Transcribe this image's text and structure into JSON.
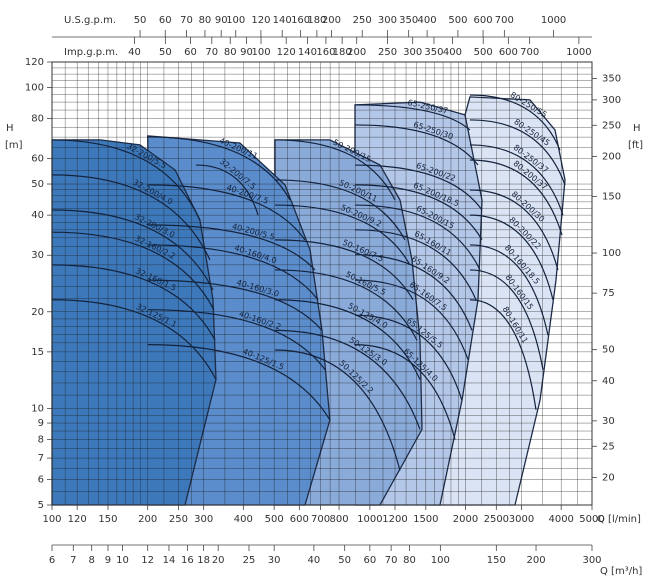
{
  "chart_data": {
    "type": "pump-selection",
    "xscale": "log",
    "yscale": "log",
    "grid": true,
    "xlabel": "Q [l/min]",
    "ylabel": "H",
    "yunit": "[m]",
    "y2label": "H",
    "y2unit": "[ft]",
    "xlim": [
      100,
      5000
    ],
    "xticks": [
      100,
      120,
      150,
      200,
      250,
      300,
      400,
      500,
      600,
      700,
      800,
      1000,
      1200,
      1500,
      2000,
      2500,
      3000,
      4000,
      5000
    ],
    "ylim": [
      5,
      120
    ],
    "yticks": [
      5,
      6,
      7,
      8,
      9,
      10,
      15,
      20,
      30,
      40,
      50,
      60,
      80,
      100,
      120
    ],
    "y2lim": [
      16.404,
      393.7
    ],
    "y2ticks": [
      20,
      25,
      30,
      40,
      50,
      75,
      100,
      150,
      200,
      250,
      300,
      350
    ],
    "usgpm": {
      "label": "U.S.g.p.m.",
      "lim": [
        26.417,
        1320.9
      ],
      "ticks": [
        50,
        60,
        70,
        80,
        90,
        100,
        120,
        140,
        160,
        180,
        200,
        250,
        300,
        350,
        400,
        500,
        600,
        700,
        1000
      ]
    },
    "impgpm": {
      "label": "Imp.g.p.m.",
      "lim": [
        21.997,
        1099.7
      ],
      "ticks": [
        40,
        50,
        60,
        70,
        80,
        90,
        100,
        120,
        140,
        160,
        180,
        200,
        250,
        300,
        350,
        400,
        500,
        600,
        700,
        1000
      ]
    },
    "m3h": {
      "label": "Q [m³/h]",
      "lim": [
        6,
        300
      ],
      "ticks": [
        6,
        7,
        8,
        9,
        10,
        12,
        14,
        16,
        18,
        20,
        25,
        30,
        40,
        50,
        60,
        70,
        80,
        100,
        150,
        200,
        300
      ]
    },
    "xgrid": [
      100,
      110,
      120,
      130,
      140,
      150,
      160,
      170,
      180,
      190,
      200,
      225,
      250,
      275,
      300,
      350,
      400,
      450,
      500,
      550,
      600,
      650,
      700,
      750,
      800,
      900,
      1000,
      1100,
      1200,
      1300,
      1400,
      1500,
      1600,
      1700,
      1800,
      1900,
      2000,
      2250,
      2500,
      2750,
      3000,
      3500,
      4000,
      4500,
      5000
    ],
    "ygrid": [
      5,
      5.5,
      6,
      6.5,
      7,
      7.5,
      8,
      8.5,
      9,
      9.5,
      10,
      11,
      12,
      13,
      14,
      15,
      16,
      17,
      18,
      19,
      20,
      22,
      24,
      26,
      28,
      30,
      32,
      34,
      36,
      38,
      40,
      42,
      44,
      46,
      48,
      50,
      55,
      60,
      65,
      70,
      75,
      80,
      85,
      90,
      95,
      100,
      105,
      110,
      115,
      120
    ],
    "families": [
      {
        "color": "#dbe4f4",
        "q": [
          1993,
          2065,
          3190,
          3823,
          4111,
          3852,
          3430,
          2862,
          1546
        ],
        "h": [
          82.1,
          93.4,
          91.4,
          73.7,
          51.5,
          25.1,
          10.6,
          5,
          5
        ]
      },
      {
        "color": "#b3c7e8",
        "q": [
          898,
          1438,
          1993,
          2253,
          2189,
          1949,
          1662,
          898
        ],
        "h": [
          88.2,
          90.0,
          82.1,
          44.6,
          21.8,
          10.6,
          5,
          5
        ]
      },
      {
        "color": "#8aaad9",
        "q": [
          503,
          749,
          1076,
          1244,
          1357,
          1438,
          1459,
          1076,
          503
        ],
        "h": [
          68.6,
          68.6,
          57.3,
          44.6,
          29.0,
          16.3,
          8.6,
          5,
          5
        ]
      },
      {
        "color": "#5b8ccb",
        "q": [
          200,
          390,
          541,
          648,
          707,
          749,
          625,
          203
        ],
        "h": [
          70.6,
          67.1,
          49.7,
          31.2,
          17.5,
          9.2,
          5,
          5
        ]
      },
      {
        "color": "#3d78ba",
        "q": [
          100,
          142,
          189,
          244,
          292,
          321,
          328,
          262,
          100
        ],
        "h": [
          68.6,
          68.6,
          66.2,
          55.3,
          38.6,
          21.8,
          12.3,
          5,
          5
        ]
      }
    ],
    "models": [
      {
        "name": "32-200/5.5",
        "q": [
          100,
          292
        ],
        "h": [
          68.6,
          38.6
        ]
      },
      {
        "name": "32-200/4.0",
        "q": [
          100,
          314
        ],
        "h": [
          53.4,
          29.0
        ]
      },
      {
        "name": "32-200/3.0",
        "q": [
          100,
          321
        ],
        "h": [
          41.5,
          23.4
        ]
      },
      {
        "name": "32-160/2.2",
        "q": [
          100,
          323
        ],
        "h": [
          35.4,
          20.3
        ]
      },
      {
        "name": "32-160/1.5",
        "q": [
          100,
          326
        ],
        "h": [
          28.0,
          16.3
        ]
      },
      {
        "name": "32-125/1.1",
        "q": [
          100,
          328
        ],
        "h": [
          21.8,
          12.3
        ]
      },
      {
        "name": "32-200/7.5",
        "q": [
          284,
          445
        ],
        "h": [
          57.3,
          40.0
        ]
      },
      {
        "name": "40-200/11",
        "q": [
          200,
          561
        ],
        "h": [
          70.1,
          44.6
        ]
      },
      {
        "name": "40-200/7.5",
        "q": [
          200,
          625
        ],
        "h": [
          49.7,
          33.5
        ]
      },
      {
        "name": "40-200/5.5",
        "q": [
          200,
          672
        ],
        "h": [
          37.3,
          27.0
        ]
      },
      {
        "name": "40-160/4.0",
        "q": [
          200,
          687
        ],
        "h": [
          32.3,
          21.8
        ]
      },
      {
        "name": "40-160/3.0",
        "q": [
          200,
          707
        ],
        "h": [
          25.1,
          17.5
        ]
      },
      {
        "name": "40-160/2.2",
        "q": [
          200,
          723
        ],
        "h": [
          20.3,
          13.2
        ]
      },
      {
        "name": "40-125/1.5",
        "q": [
          200,
          749
        ],
        "h": [
          15.8,
          9.2
        ]
      },
      {
        "name": "50-200/15",
        "q": [
          503,
          1200
        ],
        "h": [
          68.6,
          44.6
        ]
      },
      {
        "name": "50-200/11",
        "q": [
          503,
          1290
        ],
        "h": [
          51.5,
          33.5
        ]
      },
      {
        "name": "50-200/9.2",
        "q": [
          503,
          1337
        ],
        "h": [
          43.0,
          28.0
        ]
      },
      {
        "name": "50-160/7.5",
        "q": [
          503,
          1367
        ],
        "h": [
          33.5,
          21.8
        ]
      },
      {
        "name": "50-160/5.5",
        "q": [
          503,
          1407
        ],
        "h": [
          27.0,
          16.3
        ]
      },
      {
        "name": "50-125/4.0",
        "q": [
          503,
          1438
        ],
        "h": [
          21.8,
          12.3
        ]
      },
      {
        "name": "50-125/3.0",
        "q": [
          503,
          1438
        ],
        "h": [
          17.5,
          8.6
        ]
      },
      {
        "name": "50-125/2.2",
        "q": [
          503,
          1244
        ],
        "h": [
          15.2,
          6.4
        ]
      },
      {
        "name": "65-250/37",
        "q": [
          898,
          2065
        ],
        "h": [
          88.2,
          73.7
        ]
      },
      {
        "name": "65-250/30",
        "q": [
          898,
          2189
        ],
        "h": [
          76.4,
          57.3
        ]
      },
      {
        "name": "65-200/22",
        "q": [
          898,
          2253
        ],
        "h": [
          57.3,
          41.5
        ]
      },
      {
        "name": "65-200/18.5",
        "q": [
          898,
          2253
        ],
        "h": [
          49.7,
          33.5
        ]
      },
      {
        "name": "65-200/15",
        "q": [
          898,
          2221
        ],
        "h": [
          43.0,
          27.0
        ]
      },
      {
        "name": "65-160/11",
        "q": [
          898,
          2157
        ],
        "h": [
          36.0,
          21.8
        ]
      },
      {
        "name": "65-160/9.2",
        "q": [
          898,
          2096
        ],
        "h": [
          30.1,
          17.5
        ]
      },
      {
        "name": "65-160/7.5",
        "q": [
          898,
          2036
        ],
        "h": [
          25.1,
          14.2
        ]
      },
      {
        "name": "65-125/5.5",
        "q": [
          898,
          1949
        ],
        "h": [
          19.5,
          10.6
        ]
      },
      {
        "name": "65-125/4.0",
        "q": [
          898,
          1853
        ],
        "h": [
          15.8,
          8.0
        ]
      },
      {
        "name": "80-250/55",
        "q": [
          2065,
          3964
        ],
        "h": [
          94.7,
          63.8
        ]
      },
      {
        "name": "80-250/45",
        "q": [
          2065,
          4111
        ],
        "h": [
          79.2,
          49.7
        ]
      },
      {
        "name": "80-250/37",
        "q": [
          2065,
          4052
        ],
        "h": [
          66.2,
          40.0
        ]
      },
      {
        "name": "80-200/37",
        "q": [
          2065,
          4022
        ],
        "h": [
          59.4,
          34.7
        ]
      },
      {
        "name": "80-200/30",
        "q": [
          2065,
          3907
        ],
        "h": [
          47.9,
          27.0
        ]
      },
      {
        "name": "80-200/22",
        "q": [
          2065,
          3768
        ],
        "h": [
          40.0,
          21.8
        ]
      },
      {
        "name": "80-160/18.5",
        "q": [
          2065,
          3635
        ],
        "h": [
          32.3,
          16.9
        ]
      },
      {
        "name": "80-160/15",
        "q": [
          2065,
          3505
        ],
        "h": [
          27.0,
          13.2
        ]
      },
      {
        "name": "80-160/11",
        "q": [
          2065,
          3332
        ],
        "h": [
          21.8,
          9.9
        ]
      }
    ]
  }
}
